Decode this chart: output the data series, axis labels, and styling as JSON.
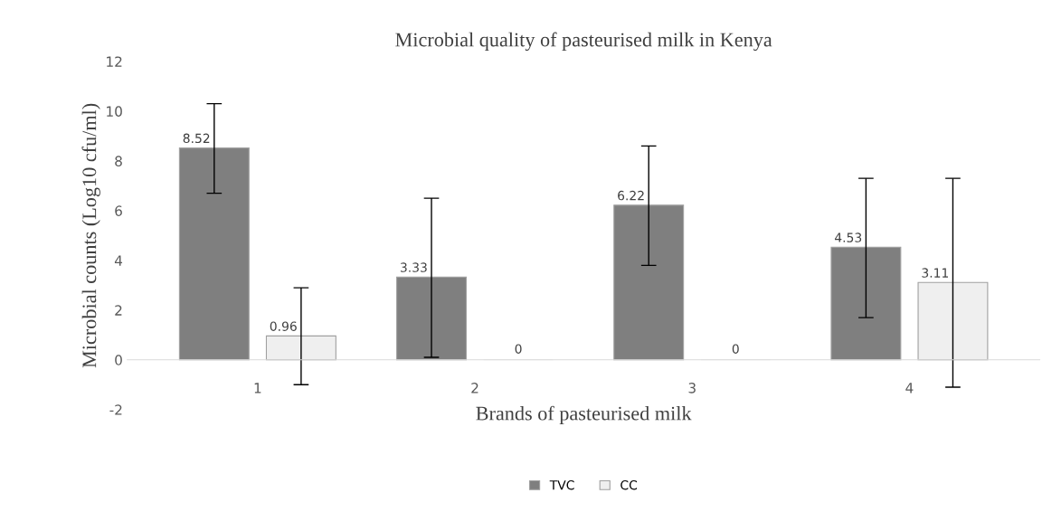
{
  "chart_data": {
    "type": "bar",
    "title": "Microbial quality of pasteurised milk in Kenya",
    "xlabel": "Brands of pasteurised milk",
    "ylabel": "Microbial counts (Log10 cfu/ml)",
    "categories": [
      "1",
      "2",
      "3",
      "4"
    ],
    "series": [
      {
        "name": "TVC",
        "color": "#7f7f7f",
        "values": [
          8.52,
          3.33,
          6.22,
          4.53
        ],
        "errors": [
          [
            6.7,
            10.3
          ],
          [
            0.1,
            6.5
          ],
          [
            3.8,
            8.6
          ],
          [
            1.7,
            7.3
          ]
        ]
      },
      {
        "name": "CC",
        "color": "#efefef",
        "values": [
          0.96,
          0,
          0,
          3.11
        ],
        "errors": [
          [
            -1.0,
            2.9
          ],
          null,
          null,
          [
            -1.1,
            7.3
          ]
        ]
      }
    ],
    "ylim": [
      -2,
      12
    ],
    "yticks": [
      -2,
      0,
      2,
      4,
      6,
      8,
      10,
      12
    ],
    "data_labels": true,
    "grid": false,
    "legend": "bottom"
  }
}
